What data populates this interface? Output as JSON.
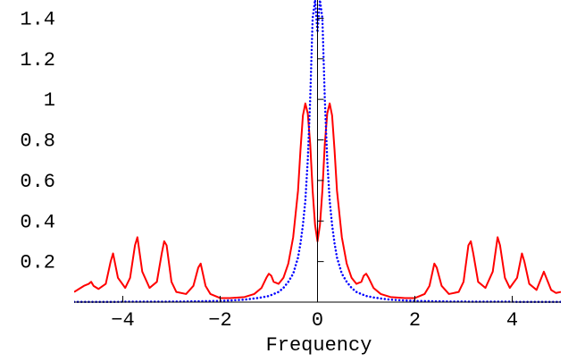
{
  "chart_data": {
    "type": "line",
    "x_label": "Frequency",
    "x": [
      -5,
      -4.9,
      -4.8,
      -4.7,
      -4.65,
      -4.6,
      -4.5,
      -4.35,
      -4.25,
      -4.2,
      -4.1,
      -3.95,
      -3.85,
      -3.75,
      -3.7,
      -3.6,
      -3.45,
      -3.3,
      -3.2,
      -3.15,
      -3.1,
      -3.0,
      -2.9,
      -2.7,
      -2.55,
      -2.45,
      -2.4,
      -2.3,
      -2.2,
      -2.0,
      -1.8,
      -1.5,
      -1.3,
      -1.15,
      -1.05,
      -1.0,
      -0.95,
      -0.9,
      -0.8,
      -0.7,
      -0.6,
      -0.5,
      -0.4,
      -0.35,
      -0.3,
      -0.25,
      -0.2,
      -0.15,
      -0.1,
      -0.05,
      0,
      0.05,
      0.1,
      0.15,
      0.2,
      0.25,
      0.3,
      0.35,
      0.4,
      0.5,
      0.6,
      0.7,
      0.8,
      0.9,
      0.95,
      1.0,
      1.05,
      1.15,
      1.3,
      1.5,
      1.8,
      2.0,
      2.2,
      2.3,
      2.4,
      2.45,
      2.55,
      2.7,
      2.9,
      3.0,
      3.1,
      3.15,
      3.2,
      3.3,
      3.45,
      3.6,
      3.7,
      3.75,
      3.85,
      3.95,
      4.1,
      4.2,
      4.25,
      4.35,
      4.5,
      4.6,
      4.65,
      4.7,
      4.8,
      4.9,
      5
    ],
    "series": [
      {
        "color": "#ff0000",
        "line_style": "solid",
        "values": [
          0.05,
          0.065,
          0.08,
          0.09,
          0.1,
          0.08,
          0.065,
          0.09,
          0.2,
          0.24,
          0.12,
          0.07,
          0.12,
          0.28,
          0.32,
          0.15,
          0.07,
          0.1,
          0.24,
          0.3,
          0.28,
          0.1,
          0.05,
          0.04,
          0.08,
          0.17,
          0.19,
          0.08,
          0.04,
          0.02,
          0.02,
          0.025,
          0.04,
          0.07,
          0.12,
          0.14,
          0.13,
          0.1,
          0.09,
          0.12,
          0.19,
          0.32,
          0.55,
          0.75,
          0.92,
          0.98,
          0.93,
          0.78,
          0.55,
          0.38,
          0.3,
          0.38,
          0.55,
          0.78,
          0.93,
          0.98,
          0.92,
          0.75,
          0.55,
          0.32,
          0.19,
          0.12,
          0.09,
          0.1,
          0.13,
          0.14,
          0.12,
          0.07,
          0.04,
          0.025,
          0.02,
          0.02,
          0.04,
          0.08,
          0.19,
          0.17,
          0.08,
          0.04,
          0.05,
          0.1,
          0.28,
          0.3,
          0.24,
          0.1,
          0.07,
          0.15,
          0.32,
          0.28,
          0.12,
          0.07,
          0.12,
          0.24,
          0.2,
          0.09,
          0.06,
          0.12,
          0.15,
          0.12,
          0.06,
          0.045,
          0.05
        ]
      },
      {
        "color": "#0000ff",
        "line_style": "dotted",
        "values": [
          0.001,
          0.001,
          0.001,
          0.001,
          0.001,
          0.001,
          0.001,
          0.001,
          0.001,
          0.001,
          0.001,
          0.002,
          0.002,
          0.002,
          0.002,
          0.002,
          0.002,
          0.002,
          0.002,
          0.002,
          0.002,
          0.003,
          0.003,
          0.003,
          0.004,
          0.004,
          0.004,
          0.005,
          0.005,
          0.006,
          0.008,
          0.012,
          0.018,
          0.023,
          0.028,
          0.03,
          0.035,
          0.04,
          0.05,
          0.07,
          0.1,
          0.14,
          0.22,
          0.29,
          0.38,
          0.5,
          0.7,
          1.0,
          1.4,
          1.49,
          1.33,
          1.49,
          1.4,
          1.0,
          0.7,
          0.5,
          0.38,
          0.29,
          0.22,
          0.14,
          0.1,
          0.07,
          0.05,
          0.04,
          0.035,
          0.03,
          0.028,
          0.023,
          0.018,
          0.012,
          0.008,
          0.006,
          0.005,
          0.005,
          0.004,
          0.004,
          0.004,
          0.003,
          0.003,
          0.003,
          0.002,
          0.002,
          0.002,
          0.002,
          0.002,
          0.002,
          0.002,
          0.002,
          0.002,
          0.002,
          0.001,
          0.001,
          0.001,
          0.001,
          0.001,
          0.001,
          0.001,
          0.001,
          0.001,
          0.001,
          0.001
        ]
      }
    ],
    "xlim": [
      -5,
      5
    ],
    "ylim": [
      0,
      1.49
    ],
    "xticks": [
      {
        "value": -4,
        "label": "−4"
      },
      {
        "value": -2,
        "label": "−2"
      },
      0,
      2,
      4
    ],
    "yticks": [
      0.2,
      0.4,
      0.6,
      0.8,
      1,
      1.2,
      1.4
    ]
  }
}
